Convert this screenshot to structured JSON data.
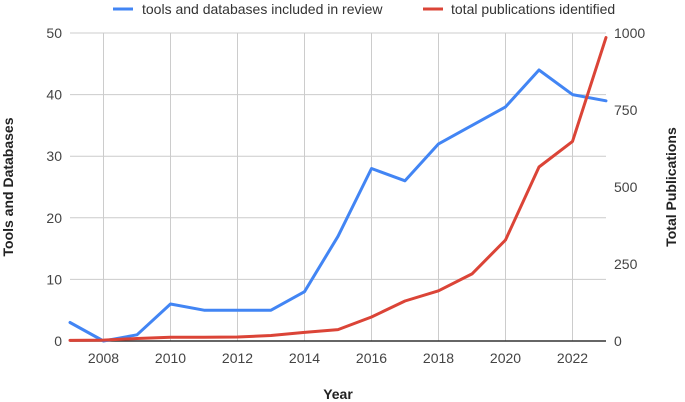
{
  "chart_data": {
    "type": "line",
    "x": [
      2007,
      2008,
      2009,
      2010,
      2011,
      2012,
      2013,
      2014,
      2015,
      2016,
      2017,
      2018,
      2019,
      2020,
      2021,
      2022,
      2023
    ],
    "x_ticks": [
      2008,
      2010,
      2012,
      2014,
      2016,
      2018,
      2020,
      2022
    ],
    "xlim": [
      2007,
      2023
    ],
    "xlabel": "Year",
    "ylabel_left": "Tools and Databases",
    "ylabel_right": "Total Publications",
    "ylim_left": [
      0,
      50
    ],
    "yticks_left": [
      0,
      10,
      20,
      30,
      40,
      50
    ],
    "ylim_right": [
      0,
      1000
    ],
    "yticks_right": [
      0,
      250,
      500,
      750,
      1000
    ],
    "grid": "vertical and horizontal",
    "legend_position": "top",
    "series": [
      {
        "name": "tools and databases included in review",
        "axis": "left",
        "color": "#4285F4",
        "values": [
          3,
          0,
          1,
          6,
          5,
          5,
          5,
          8,
          17,
          28,
          26,
          32,
          35,
          38,
          44,
          40,
          39
        ]
      },
      {
        "name": "total publications identified",
        "axis": "right",
        "color": "#DB4437",
        "values": [
          2,
          3,
          8,
          12,
          12,
          13,
          18,
          28,
          37,
          78,
          130,
          163,
          218,
          328,
          565,
          648,
          985
        ]
      }
    ]
  }
}
